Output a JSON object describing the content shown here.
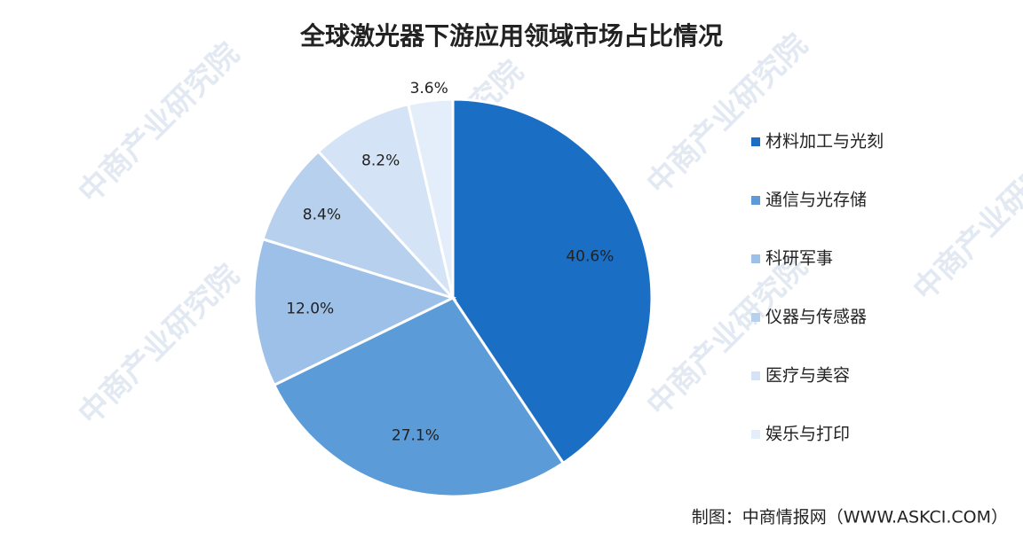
{
  "chart_data": {
    "type": "pie",
    "title": "全球激光器下游应用领域市场占比情况",
    "categories": [
      "材料加工与光刻",
      "通信与光存储",
      "科研军事",
      "仪器与传感器",
      "医疗与美容",
      "娱乐与打印"
    ],
    "values": [
      40.6,
      27.1,
      12.0,
      8.4,
      8.2,
      3.6
    ],
    "value_labels": [
      "40.6%",
      "27.1%",
      "12.0%",
      "8.4%",
      "8.2%",
      "3.6%"
    ],
    "colors": [
      "#1a6ec4",
      "#5b9bd7",
      "#9cc0e7",
      "#b7d0ed",
      "#d4e3f5",
      "#e3eefa"
    ],
    "source": "制图：中商情报网（WWW.ASKCI.COM）",
    "watermark": "中商产业研究院"
  }
}
